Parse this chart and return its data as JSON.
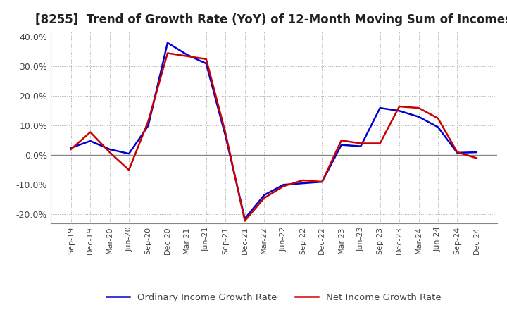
{
  "title": "[8255]  Trend of Growth Rate (YoY) of 12-Month Moving Sum of Incomes",
  "legend_labels": [
    "Ordinary Income Growth Rate",
    "Net Income Growth Rate"
  ],
  "line_colors": [
    "#0000CC",
    "#CC0000"
  ],
  "ylim": [
    -0.23,
    0.42
  ],
  "yticks": [
    -0.2,
    -0.1,
    0.0,
    0.1,
    0.2,
    0.3,
    0.4
  ],
  "background_color": "#FFFFFF",
  "grid_color": "#AAAAAA",
  "x_labels": [
    "Sep-19",
    "Dec-19",
    "Mar-20",
    "Jun-20",
    "Sep-20",
    "Dec-20",
    "Mar-21",
    "Jun-21",
    "Sep-21",
    "Dec-21",
    "Mar-22",
    "Jun-22",
    "Sep-22",
    "Dec-22",
    "Mar-23",
    "Jun-23",
    "Sep-23",
    "Dec-23",
    "Mar-24",
    "Jun-24",
    "Sep-24",
    "Dec-24"
  ],
  "ordinary_income": [
    0.025,
    0.048,
    0.02,
    0.005,
    0.1,
    0.38,
    0.34,
    0.31,
    0.065,
    -0.215,
    -0.135,
    -0.1,
    -0.095,
    -0.09,
    0.035,
    0.03,
    0.16,
    0.15,
    0.13,
    0.095,
    0.008,
    0.01
  ],
  "net_income": [
    0.02,
    0.078,
    0.01,
    -0.05,
    0.115,
    0.345,
    0.335,
    0.325,
    0.075,
    -0.222,
    -0.145,
    -0.105,
    -0.085,
    -0.09,
    0.05,
    0.04,
    0.04,
    0.165,
    0.16,
    0.125,
    0.01,
    -0.01
  ]
}
